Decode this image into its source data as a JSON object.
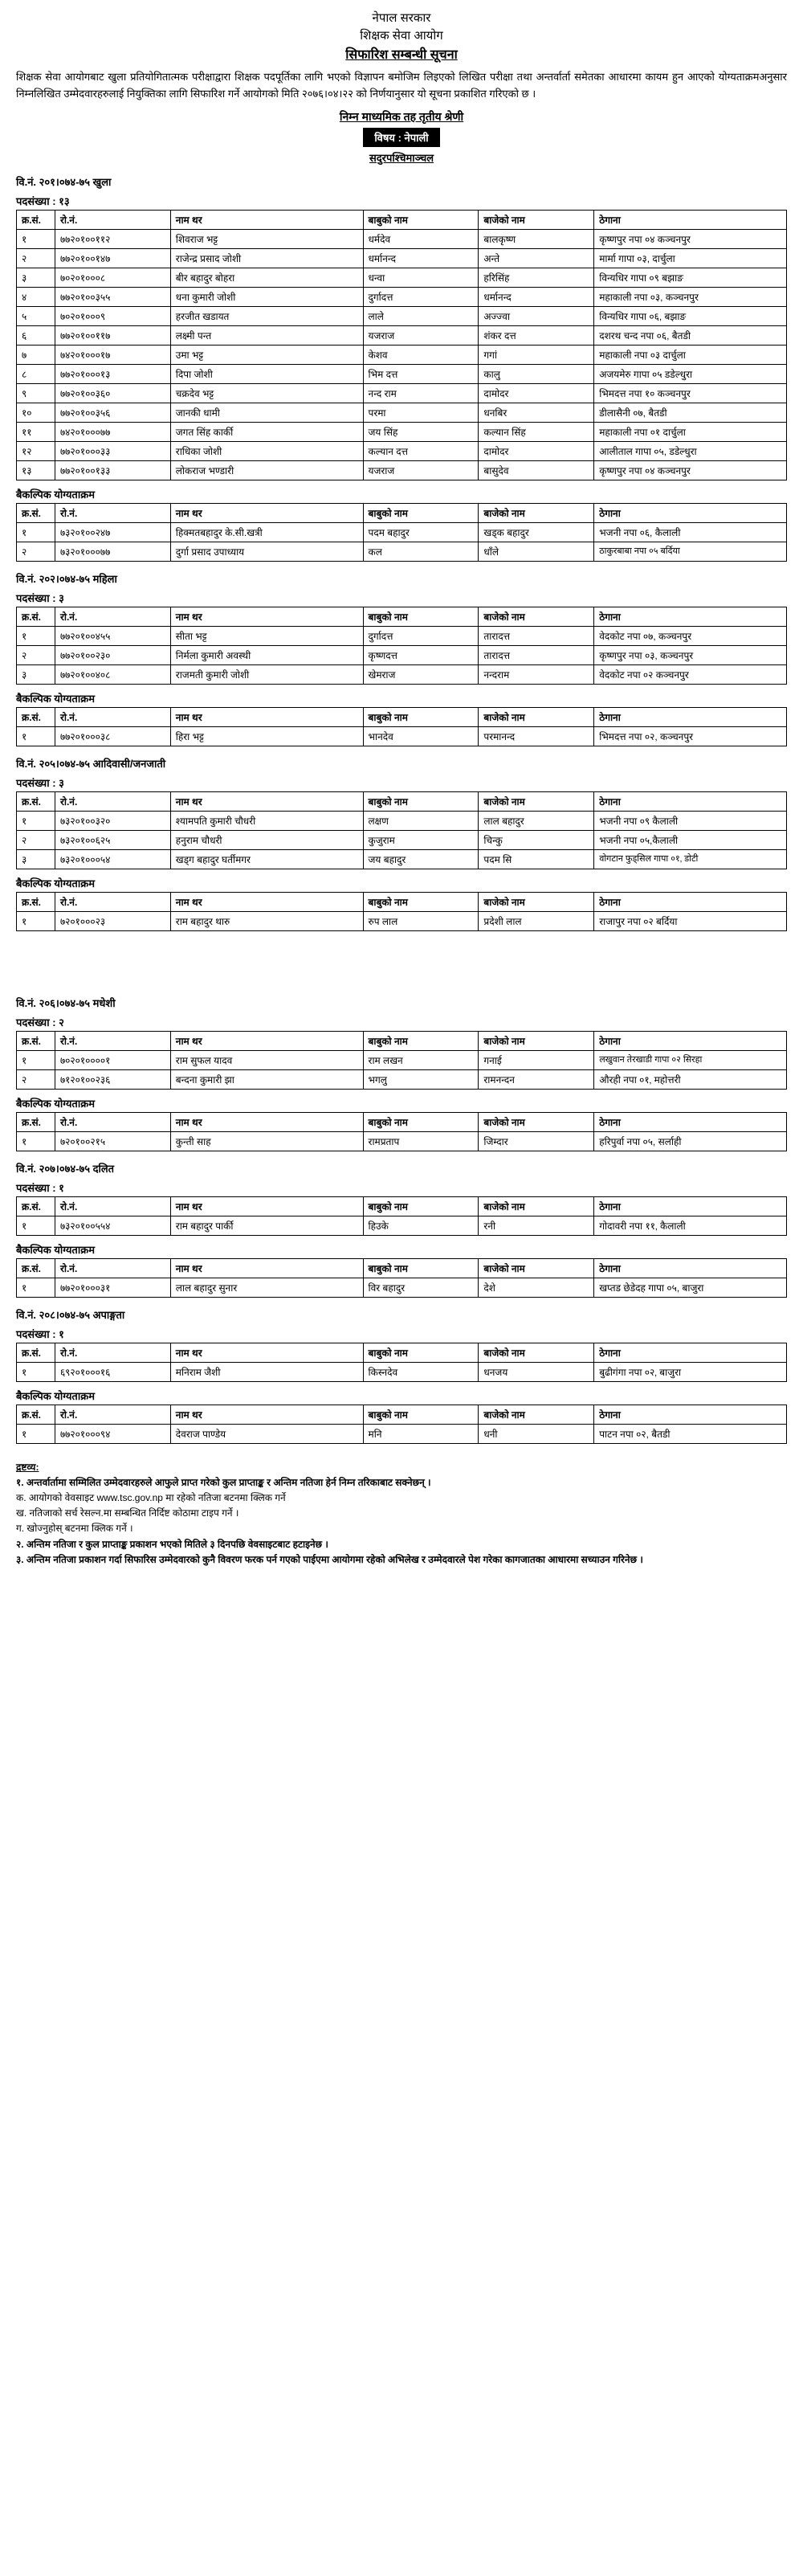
{
  "header": {
    "gov": "नेपाल सरकार",
    "org": "शिक्षक सेवा आयोग",
    "notice_title": "सिफारिश सम्बन्धी सूचना",
    "intro": "शिक्षक सेवा आयोगबाट खुला प्रतियोगितात्मक परीक्षाद्वारा शिक्षक पदपूर्तिका लागि भएको विज्ञापन बमोजिम लिइएको लिखित परीक्षा तथा अन्तर्वार्ता समेतका आधारमा कायम हुन आएको योग्यताक्रमअनुसार निम्नलिखित उम्मेदवारहरुलाई नियुक्तिका लागि सिफारिश गर्ने आयोगको मिति २०७६।०४।२२ को निर्णयानुसार यो सूचना प्रकाशित गरिएको छ ।",
    "level": "निम्न माध्यमिक तह तृतीय श्रेणी",
    "subject_label": "विषय : नेपाली",
    "province": "सदुरपश्चिमाञ्चल"
  },
  "labels": {
    "vac_post": "पदसंख्या :",
    "alt": "बैकल्पिक योग्यताक्रम",
    "col_sn": "क्र.सं.",
    "col_roll": "रो.नं.",
    "col_name": "नाम थर",
    "col_father": "बाबुको नाम",
    "col_gf": "बाजेको नाम",
    "col_addr": "ठेगाना"
  },
  "sections": [
    {
      "key": "s1",
      "vac": "वि.नं. २०१।०७४-७५  खुला",
      "posts": "१३",
      "rows": [
        [
          "१",
          "७७२०१००११२",
          "शिवराज भट्ट",
          "धर्मदेव",
          "बालकृष्ण",
          "कृष्णपुर नपा ०४ कञ्चनपुर"
        ],
        [
          "२",
          "७७२०१००१४७",
          "राजेन्द्र प्रसाद जोशी",
          "धर्मानन्द",
          "अन्ते",
          "मार्मा गापा ०३, दार्चुला"
        ],
        [
          "३",
          "७०२०१०००८",
          "बीर बहादुर बोहरा",
          "धन्वा",
          "हरिसिंह",
          "विन्यधिर गापा ०९ बझाङ"
        ],
        [
          "४",
          "७७२०१००३५५",
          "धना कुमारी जोशी",
          "दुर्गादत्त",
          "धर्मानन्द",
          "महाकाली नपा ०३, कञ्चनपुर"
        ],
        [
          "५",
          "७०२०१०००९",
          "हरजीत खडायत",
          "लाले",
          "अज्ज्वा",
          "विन्यधिर गापा ०६, बझाङ"
        ],
        [
          "६",
          "७७२०१००११७",
          "लक्ष्मी पन्त",
          "यजराज",
          "शंकर दत्त",
          "दशरथ चन्द नपा ०६, बैतडी"
        ],
        [
          "७",
          "७४२०१०००१७",
          "उमा भट्ट",
          "केशव",
          "गगां",
          "महाकाली नपा ०३ दार्चुला"
        ],
        [
          "८",
          "७७२०१०००१३",
          "दिपा जोशी",
          "भिम दत्त",
          "कालु",
          "अजयमेरु गापा ०५ डडेल्धुरा"
        ],
        [
          "९",
          "७७२०१००३६०",
          "चक्रदेव भट्ट",
          "नन्द राम",
          "दामोदर",
          "भिमदत्त नपा १० कञ्चनपुर"
        ],
        [
          "१०",
          "७७२०१००३५६",
          "जानकी धामी",
          "परमा",
          "धनबिर",
          "डीलासैनी ०७, बैतडी"
        ],
        [
          "११",
          "७४२०१०००७७",
          "जगत सिंह कार्की",
          "जय सिंह",
          "कल्यान सिंह",
          "महाकाली नपा ०१ दार्चुला"
        ],
        [
          "१२",
          "७७२०१०००३३",
          "राधिका जोशी",
          "कल्यान दत्त",
          "दामोदर",
          "आलीताल गापा ०५, डडेल्धुरा"
        ],
        [
          "१३",
          "७७२०१००१३३",
          "लोकराज भण्डारी",
          "यजराज",
          "बासुदेव",
          "कृष्णपुर नपा ०४ कञ्चनपुर"
        ]
      ],
      "alt_rows": [
        [
          "१",
          "७३२०१००२४७",
          "हिक्मतबहादुर के.सी.खत्री",
          "पदम बहादुर",
          "खड्क बहादुर",
          "भजनी नपा ०६, कैलाली"
        ],
        [
          "२",
          "७३२०१०००७७",
          "दुर्गा प्रसाद उपाध्याय",
          "कल",
          "धाँले",
          "<span class='small'>ठाकुरबाबा नपा ०५ बर्दिया</span>"
        ]
      ]
    },
    {
      "key": "s2",
      "vac": "वि.नं. २०२।०७४-७५  महिला",
      "posts": "३",
      "rows": [
        [
          "१",
          "७७२०१००४५५",
          "सीता भट्ट",
          "दुर्गादत्त",
          "तारादत्त",
          "वेदकोट नपा ०७, कञ्चनपुर"
        ],
        [
          "२",
          "७७२०१००२३०",
          "निर्मला कुमारी अवस्थी",
          "कृष्णदत्त",
          "तारादत्त",
          "कृष्णपुर नपा ०३, कञ्चनपुर"
        ],
        [
          "३",
          "७७२०१००४०८",
          "राजमती कुमारी जोशी",
          "खेमराज",
          "नन्दराम",
          "वेदकोट नपा ०२ कञ्चनपुर"
        ]
      ],
      "alt_rows": [
        [
          "१",
          "७७२०१०००३८",
          "हिरा भट्ट",
          "भानदेव",
          "परमानन्द",
          "भिमदत्त नपा ०२, कञ्चनपुर"
        ]
      ]
    },
    {
      "key": "s3",
      "vac": "वि.नं. २०५।०७४-७५  आदिवासी/जनजाती",
      "posts": "३",
      "rows": [
        [
          "१",
          "७३२०१००३२०",
          "श्यामपति कुमारी चौधरी",
          "लक्षण",
          "लाल बहादुर",
          "भजनी नपा ०९ कैलाली"
        ],
        [
          "२",
          "७३२०१००६२५",
          "हनुराम चौधरी",
          "कुजुराम",
          "चिन्कु",
          "भजनी नपा ०५,कैलाली"
        ],
        [
          "३",
          "७३२०१०००५४",
          "खड्ग बहादुर घर्तीमगर",
          "जय बहादुर",
          "पदम सि",
          "<span class='small'>वोगटान फुड्सिल गापा ०१‚ डोटी</span>"
        ]
      ],
      "alt_rows": [
        [
          "१",
          "७२०१०००२३",
          "राम बहादुर थारु",
          "रुप लाल",
          "प्रदेशी लाल",
          "राजापुर नपा ०२ बर्दिया"
        ]
      ]
    },
    {
      "key": "s4",
      "vac": "वि.नं. २०६।०७४-७५  मधेशी",
      "posts": "२",
      "gap_before": true,
      "rows": [
        [
          "१",
          "७०२०१००००१",
          "राम सुफल यादव",
          "राम लखन",
          "गनाई",
          "<span class='small'>लखुवान तेरखाडी गापा ०२ सिरहा</span>"
        ],
        [
          "२",
          "७१२०१००२३६",
          "बन्दना कुमारी झा",
          "भगलु",
          "रामनन्दन",
          "औरही नपा ०१‚ महोत्तरी"
        ]
      ],
      "alt_rows": [
        [
          "१",
          "७२०१००२१५",
          "कुन्ती साह",
          "रामप्रताप",
          "जिम्दार",
          "हरिपुर्वा नपा ०५, सर्लाही"
        ]
      ]
    },
    {
      "key": "s5",
      "vac": "वि.नं. २०७।०७४-७५  दलित",
      "posts": "१",
      "rows": [
        [
          "१",
          "७३२०१००५५४",
          "राम बहादुर पार्की",
          "हिउके",
          "रनी",
          "गोदावरी नपा ११‚ कैलाली"
        ]
      ],
      "alt_rows": [
        [
          "१",
          "७७२०१०००३१",
          "लाल बहादुर सुनार",
          "विर बहादुर",
          "देशे",
          "खप्तड छेडेदह गापा ०५, बाजुरा"
        ]
      ]
    },
    {
      "key": "s6",
      "vac": "वि.नं. २०८।०७४-७५  अपाङ्गता",
      "posts": "१",
      "rows": [
        [
          "१",
          "६९२०१०००१६",
          "मनिराम जैशी",
          "किस्नदेव",
          "धनजय",
          "बुढीगंगा नपा ०२‚ बाजुरा"
        ]
      ],
      "alt_rows": [
        [
          "१",
          "७७२०१०००९४",
          "देवराज पाण्डेय",
          "मनि",
          "धनी",
          "पाटन नपा ०२, बैतडी"
        ]
      ]
    }
  ],
  "notes": {
    "title": "द्रष्टव्य:",
    "items": [
      "१. अन्तर्वार्तामा सम्मिलित उम्मेदवारहरुले आफुले प्राप्त गरेको कुल प्राप्ताङ्क र अन्तिम नतिजा हेर्न निम्न तरिकाबाट सक्नेछन् ।",
      "क. आयोगको वेवसाइट www.tsc.gov.np मा रहेको नतिजा बटनमा क्लिक गर्ने",
      "ख. नतिजाको सर्च रेसल्न.मा सम्बन्धित निर्दिष्ट कोठामा टाइप गर्ने ।",
      "ग. खोज्नुहोस् बटनमा क्लिक गर्ने ।",
      "२. अन्तिम नतिजा र कुल प्राप्ताङ्क प्रकाशन भएको मितिले ३ दिनपछि वेवसाइटबाट हटाइनेछ ।",
      "३. अन्तिम नतिजा प्रकाशन गर्दा सिफारिस उम्मेदवारको कुनै विवरण फरक पर्न गएको पाईएमा आयोगमा रहेको अभिलेख र उम्मेदवारले पेश गरेका कागजातका आधारमा सच्याउन गरिनेछ ।"
    ]
  }
}
